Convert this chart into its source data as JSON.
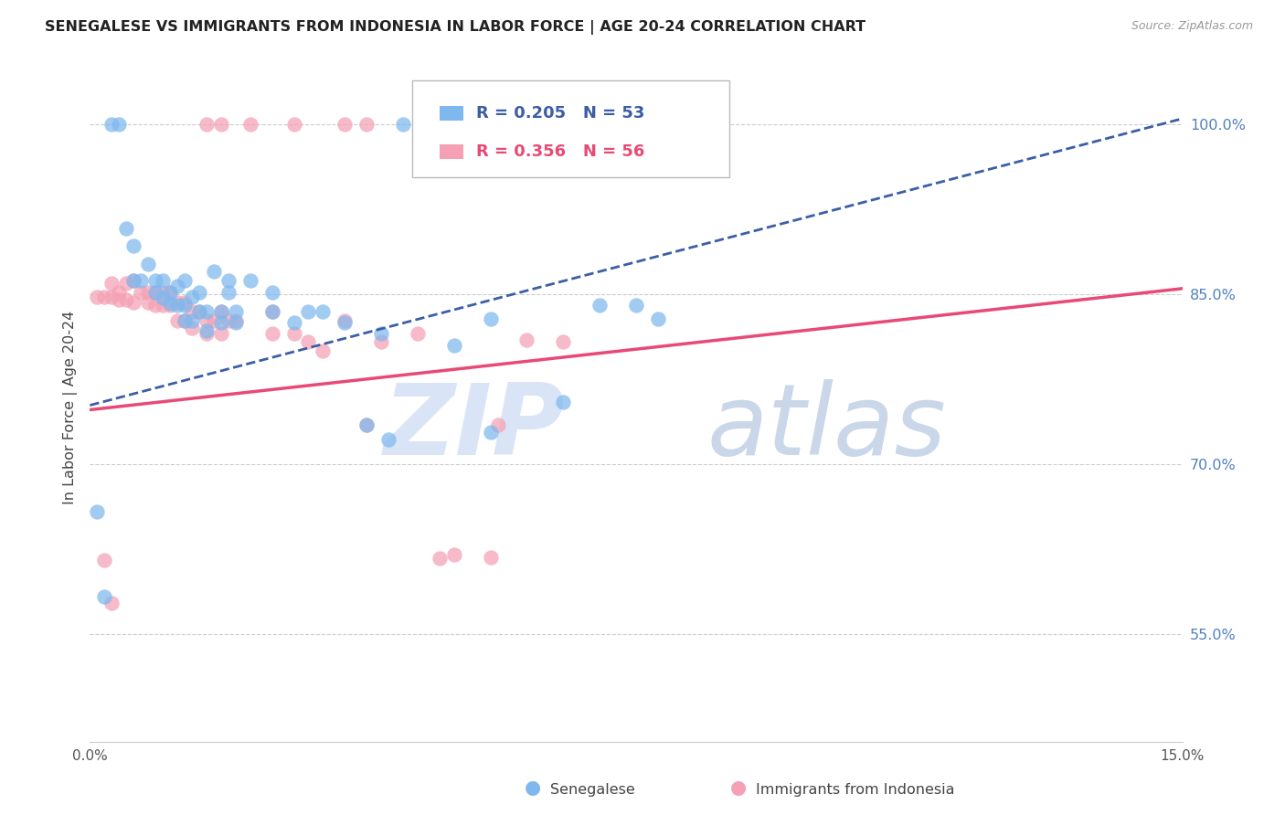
{
  "title": "SENEGALESE VS IMMIGRANTS FROM INDONESIA IN LABOR FORCE | AGE 20-24 CORRELATION CHART",
  "source": "Source: ZipAtlas.com",
  "ylabel": "In Labor Force | Age 20-24",
  "x_min": 0.0,
  "x_max": 0.15,
  "y_min": 0.455,
  "y_max": 1.045,
  "y_ticks": [
    0.55,
    0.7,
    0.85,
    1.0
  ],
  "y_tick_labels": [
    "55.0%",
    "70.0%",
    "85.0%",
    "100.0%"
  ],
  "x_ticks": [
    0.0,
    0.03,
    0.06,
    0.09,
    0.12,
    0.15
  ],
  "x_tick_labels": [
    "0.0%",
    "",
    "",
    "",
    "",
    "15.0%"
  ],
  "color_blue": "#7EB8EE",
  "color_pink": "#F5A0B5",
  "color_blue_line": "#3B5EA6",
  "color_pink_line": "#E84A75",
  "legend_R_blue": "0.205",
  "legend_N_blue": "53",
  "legend_R_pink": "0.356",
  "legend_N_pink": "56",
  "label_blue": "Senegalese",
  "label_pink": "Immigrants from Indonesia",
  "blue_scatter_x": [
    0.001,
    0.005,
    0.006,
    0.006,
    0.007,
    0.008,
    0.009,
    0.009,
    0.01,
    0.01,
    0.011,
    0.011,
    0.012,
    0.012,
    0.013,
    0.013,
    0.013,
    0.014,
    0.014,
    0.015,
    0.015,
    0.016,
    0.016,
    0.017,
    0.018,
    0.018,
    0.019,
    0.019,
    0.02,
    0.02,
    0.022,
    0.025,
    0.025,
    0.028,
    0.03,
    0.032,
    0.035,
    0.038,
    0.04,
    0.041,
    0.05,
    0.055,
    0.065,
    0.07,
    0.075,
    0.078,
    0.055,
    0.002,
    0.003,
    0.004,
    0.043,
    0.046,
    0.062
  ],
  "blue_scatter_y": [
    0.658,
    0.908,
    0.893,
    0.862,
    0.862,
    0.877,
    0.862,
    0.852,
    0.862,
    0.847,
    0.852,
    0.842,
    0.857,
    0.84,
    0.862,
    0.84,
    0.827,
    0.848,
    0.827,
    0.852,
    0.835,
    0.835,
    0.818,
    0.87,
    0.835,
    0.825,
    0.862,
    0.852,
    0.835,
    0.825,
    0.862,
    0.852,
    0.835,
    0.825,
    0.835,
    0.835,
    0.825,
    0.735,
    0.815,
    0.722,
    0.805,
    0.728,
    0.755,
    0.84,
    0.84,
    0.828,
    0.828,
    0.583,
    1.0,
    1.0,
    1.0,
    1.0,
    0.988
  ],
  "pink_scatter_x": [
    0.001,
    0.002,
    0.003,
    0.003,
    0.004,
    0.004,
    0.005,
    0.005,
    0.006,
    0.006,
    0.007,
    0.008,
    0.008,
    0.009,
    0.009,
    0.01,
    0.01,
    0.011,
    0.011,
    0.012,
    0.012,
    0.013,
    0.013,
    0.014,
    0.014,
    0.015,
    0.016,
    0.016,
    0.017,
    0.018,
    0.018,
    0.019,
    0.02,
    0.025,
    0.025,
    0.028,
    0.03,
    0.032,
    0.035,
    0.038,
    0.04,
    0.045,
    0.05,
    0.055,
    0.056,
    0.06,
    0.065,
    0.002,
    0.003,
    0.016,
    0.018,
    0.022,
    0.028,
    0.035,
    0.038,
    0.048
  ],
  "pink_scatter_y": [
    0.848,
    0.848,
    0.848,
    0.86,
    0.852,
    0.845,
    0.86,
    0.845,
    0.862,
    0.843,
    0.852,
    0.852,
    0.843,
    0.852,
    0.84,
    0.852,
    0.84,
    0.852,
    0.84,
    0.843,
    0.827,
    0.843,
    0.827,
    0.835,
    0.82,
    0.835,
    0.827,
    0.815,
    0.827,
    0.835,
    0.815,
    0.827,
    0.827,
    0.835,
    0.815,
    0.815,
    0.808,
    0.8,
    0.827,
    0.735,
    0.808,
    0.815,
    0.62,
    0.618,
    0.735,
    0.81,
    0.808,
    0.615,
    0.577,
    1.0,
    1.0,
    1.0,
    1.0,
    1.0,
    1.0,
    0.617
  ],
  "blue_trend_x": [
    0.0,
    0.15
  ],
  "blue_trend_y": [
    0.752,
    1.005
  ],
  "pink_trend_x": [
    0.0,
    0.15
  ],
  "pink_trend_y": [
    0.748,
    0.855
  ],
  "bg_color": "#FFFFFF",
  "grid_color": "#CCCCCC",
  "watermark_zip_color": "#C0D5F0",
  "watermark_atlas_color": "#88A8D0"
}
